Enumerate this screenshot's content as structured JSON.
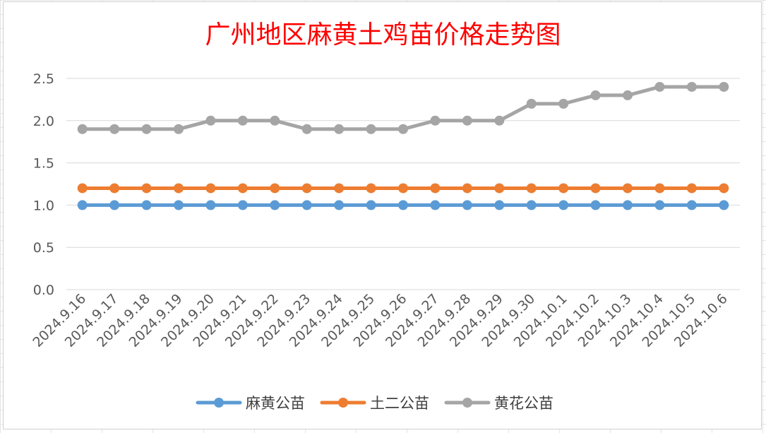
{
  "chart_data": {
    "type": "line",
    "title": "广州地区麻黄土鸡苗价格走势图",
    "xlabel": "",
    "ylabel": "",
    "ylim": [
      0,
      2.5
    ],
    "yticks": [
      "0.0",
      "0.5",
      "1.0",
      "1.5",
      "2.0",
      "2.5"
    ],
    "grid": true,
    "legend_position": "bottom",
    "categories": [
      "2024.9.16",
      "2024.9.17",
      "2024.9.18",
      "2024.9.19",
      "2024.9.20",
      "2024.9.21",
      "2024.9.22",
      "2024.9.23",
      "2024.9.24",
      "2024.9.25",
      "2024.9.26",
      "2024.9.27",
      "2024.9.28",
      "2024.9.29",
      "2024.9.30",
      "2024.10.1",
      "2024.10.2",
      "2024.10.3",
      "2024.10.4",
      "2024.10.5",
      "2024.10.6"
    ],
    "series": [
      {
        "name": "麻黄公苗",
        "color": "#5b9bd5",
        "values": [
          1.0,
          1.0,
          1.0,
          1.0,
          1.0,
          1.0,
          1.0,
          1.0,
          1.0,
          1.0,
          1.0,
          1.0,
          1.0,
          1.0,
          1.0,
          1.0,
          1.0,
          1.0,
          1.0,
          1.0,
          1.0
        ]
      },
      {
        "name": "土二公苗",
        "color": "#ed7d31",
        "values": [
          1.2,
          1.2,
          1.2,
          1.2,
          1.2,
          1.2,
          1.2,
          1.2,
          1.2,
          1.2,
          1.2,
          1.2,
          1.2,
          1.2,
          1.2,
          1.2,
          1.2,
          1.2,
          1.2,
          1.2,
          1.2
        ]
      },
      {
        "name": "黄花公苗",
        "color": "#a5a5a5",
        "values": [
          1.9,
          1.9,
          1.9,
          1.9,
          2.0,
          2.0,
          2.0,
          1.9,
          1.9,
          1.9,
          1.9,
          2.0,
          2.0,
          2.0,
          2.2,
          2.2,
          2.3,
          2.3,
          2.4,
          2.4,
          2.4
        ]
      }
    ]
  }
}
